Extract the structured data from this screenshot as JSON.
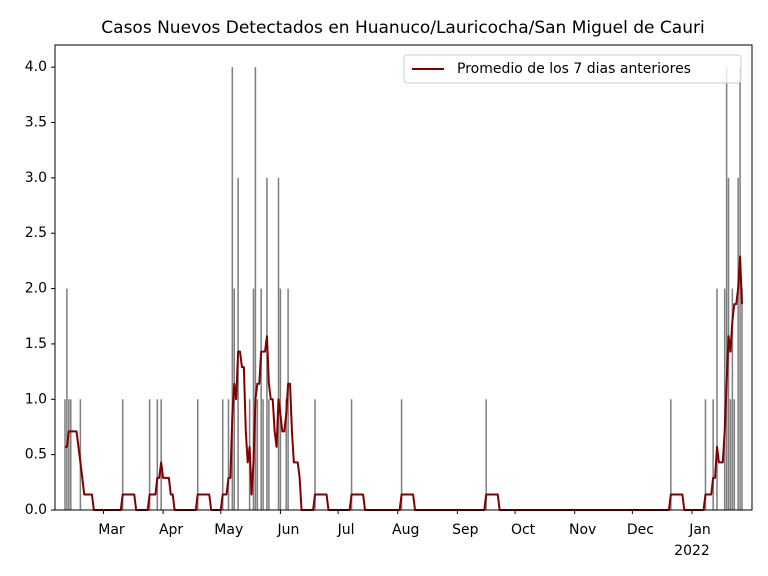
{
  "chart_data": {
    "type": "bar",
    "title": "Casos Nuevos Detectados en Huanuco/Lauricocha/San Miguel de Cauri",
    "categories": [
      null,
      null,
      null,
      null,
      null,
      null,
      null,
      null,
      null,
      null,
      null,
      null,
      null,
      null,
      null,
      null,
      null,
      null,
      null,
      null,
      "Mar",
      null,
      null,
      null,
      null,
      null,
      null,
      null,
      null,
      null,
      null,
      null,
      null,
      null,
      null,
      null,
      null,
      null,
      null,
      null,
      null,
      null,
      null,
      null,
      null,
      null,
      null,
      null,
      null,
      null,
      null,
      "Apr",
      null,
      null,
      null,
      null,
      null,
      null,
      null,
      null,
      null,
      null,
      null,
      null,
      null,
      null,
      null,
      null,
      null,
      null,
      null,
      null,
      null,
      null,
      null,
      null,
      null,
      null,
      null,
      null,
      null,
      "May",
      null,
      null,
      null,
      null,
      null,
      null,
      null,
      null,
      null,
      null,
      null,
      null,
      null,
      null,
      null,
      null,
      null,
      null,
      null,
      null,
      null,
      null,
      null,
      null,
      null,
      null,
      null,
      null,
      null,
      null,
      "Jun",
      null,
      null,
      null,
      null,
      null,
      null,
      null,
      null,
      null,
      null,
      null,
      null,
      null,
      null,
      null,
      null,
      null,
      null,
      null,
      null,
      null,
      null,
      null,
      null,
      null,
      null,
      null,
      null,
      null,
      "Jul",
      null,
      null,
      null,
      null,
      null,
      null,
      null,
      null,
      null,
      null,
      null,
      null,
      null,
      null,
      null,
      null,
      null,
      null,
      null,
      null,
      null,
      null,
      null,
      null,
      null,
      null,
      null,
      null,
      null,
      null,
      "Aug",
      null,
      null,
      null,
      null,
      null,
      null,
      null,
      null,
      null,
      null,
      null,
      null,
      null,
      null,
      null,
      null,
      null,
      null,
      null,
      null,
      null,
      null,
      null,
      null,
      null,
      null,
      null,
      null,
      null,
      null,
      "Sep",
      null,
      null,
      null,
      null,
      null,
      null,
      null,
      null,
      null,
      null,
      null,
      null,
      null,
      null,
      null,
      null,
      null,
      null,
      null,
      null,
      null,
      null,
      null,
      null,
      null,
      null,
      null,
      null,
      null,
      "Oct",
      null,
      null,
      null,
      null,
      null,
      null,
      null,
      null,
      null,
      null,
      null,
      null,
      null,
      null,
      null,
      null,
      null,
      null,
      null,
      null,
      null,
      null,
      null,
      null,
      null,
      null,
      null,
      null,
      null,
      null,
      "Nov",
      null,
      null,
      null,
      null,
      null,
      null,
      null,
      null,
      null,
      null,
      null,
      null,
      null,
      null,
      null,
      null,
      null,
      null,
      null,
      null,
      null,
      null,
      null,
      null,
      null,
      null,
      null,
      null,
      null,
      "Dec",
      null,
      null,
      null,
      null,
      null,
      null,
      null,
      null,
      null,
      null,
      null,
      null,
      null,
      null,
      null,
      null,
      null,
      null,
      null,
      null,
      null,
      null,
      null,
      null,
      null,
      null,
      null,
      null,
      null,
      null,
      "Jan",
      null,
      null,
      null,
      null,
      null,
      null,
      null,
      null,
      null,
      null,
      null,
      null,
      null,
      null,
      null,
      null,
      null,
      null,
      null,
      null,
      null,
      null,
      null,
      null,
      null,
      null
    ],
    "x_year_label": "2022",
    "color": "#808080",
    "values": [
      1,
      2,
      1,
      1,
      0,
      0,
      0,
      0,
      1,
      0,
      0,
      0,
      0,
      0,
      0,
      0,
      0,
      0,
      0,
      0,
      0,
      0,
      0,
      0,
      0,
      0,
      0,
      0,
      0,
      0,
      1,
      0,
      0,
      0,
      0,
      0,
      0,
      0,
      0,
      0,
      0,
      0,
      0,
      0,
      1,
      0,
      0,
      0,
      1,
      0,
      1,
      0,
      0,
      0,
      0,
      0,
      0,
      0,
      0,
      0,
      0,
      0,
      0,
      0,
      0,
      0,
      0,
      0,
      0,
      1,
      0,
      0,
      0,
      0,
      0,
      0,
      0,
      0,
      0,
      0,
      0,
      0,
      1,
      0,
      0,
      1,
      0,
      4,
      2,
      0,
      3,
      0,
      0,
      0,
      0,
      0,
      1,
      0,
      2,
      4,
      1,
      0,
      2,
      1,
      0,
      3,
      1,
      0,
      0,
      0,
      0,
      3,
      2,
      0,
      0,
      1,
      2,
      0,
      0,
      0,
      0,
      0,
      0,
      0,
      0,
      0,
      0,
      0,
      0,
      0,
      1,
      0,
      0,
      0,
      0,
      0,
      0,
      0,
      0,
      0,
      0,
      0,
      0,
      0,
      0,
      0,
      0,
      0,
      0,
      1,
      0,
      0,
      0,
      0,
      0,
      0,
      0,
      0,
      0,
      0,
      0,
      0,
      0,
      0,
      0,
      0,
      0,
      0,
      0,
      0,
      0,
      0,
      0,
      0,
      0,
      1,
      0,
      0,
      0,
      0,
      0,
      0,
      0,
      0,
      0,
      0,
      0,
      0,
      0,
      0,
      0,
      0,
      0,
      0,
      0,
      0,
      0,
      0,
      0,
      0,
      0,
      0,
      0,
      0,
      0,
      0,
      0,
      0,
      0,
      0,
      0,
      0,
      0,
      0,
      0,
      0,
      0,
      0,
      0,
      1,
      0,
      0,
      0,
      0,
      0,
      0,
      0,
      0,
      0,
      0,
      0,
      0,
      0,
      0,
      0,
      0,
      0,
      0,
      0,
      0,
      0,
      0,
      0,
      0,
      0,
      0,
      0,
      0,
      0,
      0,
      0,
      0,
      0,
      0,
      0,
      0,
      0,
      0,
      0,
      0,
      0,
      0,
      0,
      0,
      0,
      0,
      0,
      0,
      0,
      0,
      0,
      0,
      0,
      0,
      0,
      0,
      0,
      0,
      0,
      0,
      0,
      0,
      0,
      0,
      0,
      0,
      0,
      0,
      0,
      0,
      0,
      0,
      0,
      0,
      0,
      0,
      0,
      0,
      0,
      0,
      0,
      0,
      0,
      0,
      0,
      0,
      0,
      0,
      0,
      0,
      0,
      0,
      0,
      0,
      0,
      1,
      0,
      0,
      0,
      0,
      0,
      0,
      0,
      0,
      0,
      0,
      0,
      0,
      0,
      0,
      0,
      0,
      0,
      1,
      0,
      0,
      0,
      1,
      0,
      2,
      0,
      0,
      0,
      2,
      4,
      3,
      1,
      2,
      1,
      0,
      3,
      4,
      2
    ],
    "series": [
      {
        "name": "Promedio de los 7 dias anteriores",
        "type": "line",
        "color": "#800000",
        "values": [
          0.57,
          0.57,
          0.71,
          0.71,
          0.71,
          0.71,
          0.71,
          0.57,
          0.43,
          0.29,
          0.14,
          0.14,
          0.14,
          0.14,
          0.14,
          0,
          0,
          0,
          0,
          0,
          0,
          0,
          0,
          0,
          0,
          0,
          0,
          0,
          0,
          0,
          0.14,
          0.14,
          0.14,
          0.14,
          0.14,
          0.14,
          0.14,
          0,
          0,
          0,
          0,
          0,
          0,
          0,
          0.14,
          0.14,
          0.14,
          0.14,
          0.29,
          0.29,
          0.43,
          0.29,
          0.29,
          0.29,
          0.29,
          0.14,
          0.14,
          0,
          0,
          0,
          0,
          0,
          0,
          0,
          0,
          0,
          0,
          0,
          0,
          0.14,
          0.14,
          0.14,
          0.14,
          0.14,
          0.14,
          0.14,
          0,
          0,
          0,
          0,
          0,
          0,
          0.14,
          0.14,
          0.14,
          0.29,
          0.29,
          0.86,
          1.14,
          1,
          1.43,
          1.43,
          1.29,
          1.29,
          0.71,
          0.43,
          0.57,
          0.14,
          0.43,
          1,
          1.14,
          1.14,
          1.43,
          1.43,
          1.43,
          1.57,
          1.14,
          1,
          1,
          0.71,
          0.57,
          1,
          0.86,
          0.71,
          0.71,
          0.86,
          1.14,
          1.14,
          0.71,
          0.43,
          0.43,
          0.43,
          0.29,
          0,
          0,
          0,
          0,
          0,
          0,
          0,
          0.14,
          0.14,
          0.14,
          0.14,
          0.14,
          0.14,
          0.14,
          0,
          0,
          0,
          0,
          0,
          0,
          0,
          0,
          0,
          0,
          0,
          0,
          0.14,
          0.14,
          0.14,
          0.14,
          0.14,
          0.14,
          0.14,
          0,
          0,
          0,
          0,
          0,
          0,
          0,
          0,
          0,
          0,
          0,
          0,
          0,
          0,
          0,
          0,
          0,
          0,
          0,
          0.14,
          0.14,
          0.14,
          0.14,
          0.14,
          0.14,
          0.14,
          0,
          0,
          0,
          0,
          0,
          0,
          0,
          0,
          0,
          0,
          0,
          0,
          0,
          0,
          0,
          0,
          0,
          0,
          0,
          0,
          0,
          0,
          0,
          0,
          0,
          0,
          0,
          0,
          0,
          0,
          0,
          0,
          0,
          0,
          0,
          0,
          0,
          0.14,
          0.14,
          0.14,
          0.14,
          0.14,
          0.14,
          0.14,
          0,
          0,
          0,
          0,
          0,
          0,
          0,
          0,
          0,
          0,
          0,
          0,
          0,
          0,
          0,
          0,
          0,
          0,
          0,
          0,
          0,
          0,
          0,
          0,
          0,
          0,
          0,
          0,
          0,
          0,
          0,
          0,
          0,
          0,
          0,
          0,
          0,
          0,
          0,
          0,
          0,
          0,
          0,
          0,
          0,
          0,
          0,
          0,
          0,
          0,
          0,
          0,
          0,
          0,
          0,
          0,
          0,
          0,
          0,
          0,
          0,
          0,
          0,
          0,
          0,
          0,
          0,
          0,
          0,
          0,
          0,
          0,
          0,
          0,
          0,
          0,
          0,
          0,
          0,
          0,
          0,
          0,
          0,
          0,
          0,
          0,
          0,
          0,
          0,
          0.14,
          0.14,
          0.14,
          0.14,
          0.14,
          0.14,
          0.14,
          0,
          0,
          0,
          0,
          0,
          0,
          0,
          0,
          0,
          0,
          0,
          0.14,
          0.14,
          0.14,
          0.14,
          0.29,
          0.29,
          0.57,
          0.43,
          0.43,
          0.43,
          0.71,
          1.14,
          1.57,
          1.43,
          1.71,
          1.86,
          1.86,
          2,
          2.29,
          1.86
        ]
      }
    ],
    "ylim": [
      0,
      4.2
    ],
    "yticks": [
      {
        "value": 0,
        "label": "0.0"
      },
      0.5,
      {
        "value": 1,
        "label": "1.0"
      },
      1.5,
      {
        "value": 2,
        "label": "2.0"
      },
      2.5,
      {
        "value": 3,
        "label": "3.0"
      },
      3.5,
      {
        "value": 4,
        "label": "4.0"
      }
    ],
    "legend": "upper right"
  }
}
